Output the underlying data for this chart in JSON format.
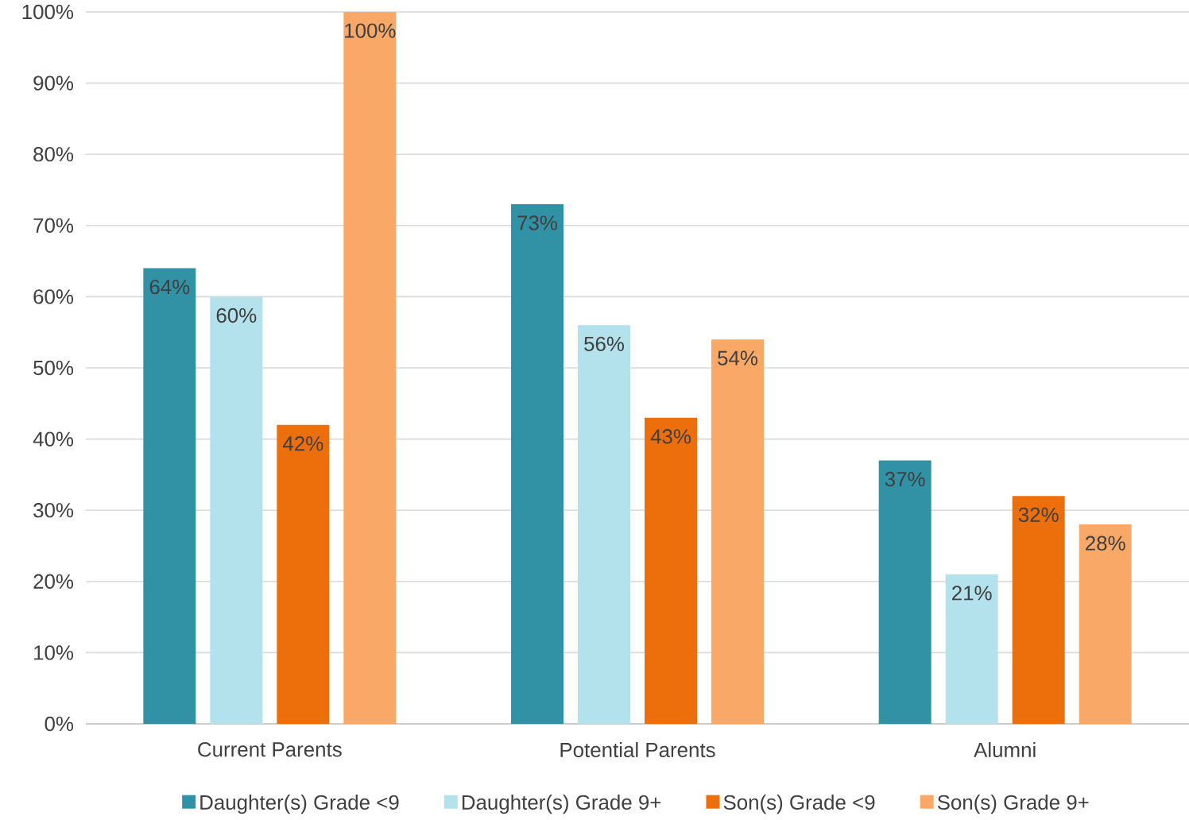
{
  "chart_data": {
    "type": "bar",
    "categories": [
      "Current Parents",
      "Potential Parents",
      "Alumni"
    ],
    "series": [
      {
        "name": "Daughter(s) Grade <9",
        "color": "#3191a5",
        "values": [
          64,
          73,
          37
        ],
        "value_labels": [
          "64%",
          "73%",
          "37%"
        ]
      },
      {
        "name": "Daughter(s) Grade 9+",
        "color": "#b3e2ec",
        "values": [
          60,
          56,
          21
        ],
        "value_labels": [
          "60%",
          "56%",
          "21%"
        ]
      },
      {
        "name": "Son(s) Grade <9",
        "color": "#ed6f0c",
        "values": [
          42,
          43,
          32
        ],
        "value_labels": [
          "42%",
          "43%",
          "32%"
        ]
      },
      {
        "name": "Son(s) Grade 9+",
        "color": "#f9a867",
        "values": [
          100,
          54,
          28
        ],
        "value_labels": [
          "100%",
          "54%",
          "28%"
        ]
      }
    ],
    "ylim": [
      0,
      100
    ],
    "yticks": [
      {
        "value": 0,
        "label": "0%"
      },
      {
        "value": 10,
        "label": "10%"
      },
      {
        "value": 20,
        "label": "20%"
      },
      {
        "value": 30,
        "label": "30%"
      },
      {
        "value": 40,
        "label": "40%"
      },
      {
        "value": 50,
        "label": "50%"
      },
      {
        "value": 60,
        "label": "60%"
      },
      {
        "value": 70,
        "label": "70%"
      },
      {
        "value": 80,
        "label": "80%"
      },
      {
        "value": 90,
        "label": "90%"
      },
      {
        "value": 100,
        "label": "100%"
      }
    ],
    "grid": "y",
    "legend": "bottom"
  }
}
